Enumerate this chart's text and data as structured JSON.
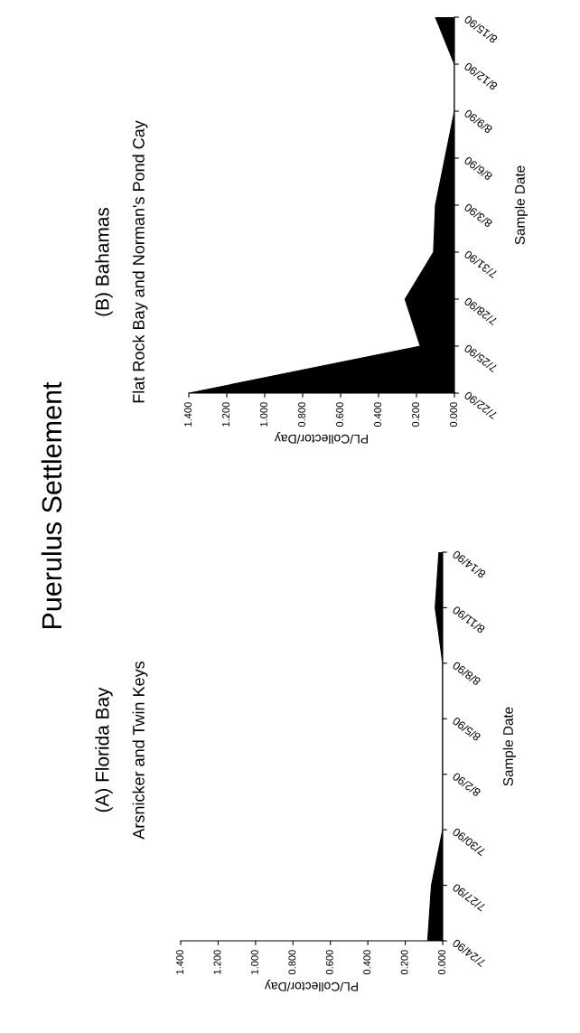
{
  "chart_data": [
    {
      "type": "area",
      "orientation": "horizontal",
      "title": "(A) Florida Bay",
      "subtitle": "Arsnicker and Twin Keys",
      "annotations": [
        "Puerulus Settlement"
      ],
      "xlabel": "PL/Collector/Day",
      "ylabel": "Sample Date",
      "categories": [
        "8/14/90",
        "8/11/90",
        "8/8/90",
        "8/5/90",
        "8/2/90",
        "7/30/90",
        "7/27/90",
        "7/24/90"
      ],
      "series": [
        {
          "color": "#000000",
          "values": [
            0.02,
            0.04,
            0.0,
            0.0,
            0.0,
            0.0,
            0.06,
            0.08
          ]
        }
      ],
      "xlim": [
        1.4,
        0
      ],
      "xticks": [
        {
          "value": 0,
          "label": "0.000"
        },
        {
          "value": 0.2,
          "label": "0.200"
        },
        {
          "value": 0.4,
          "label": "0.400"
        },
        {
          "value": 0.6,
          "label": "0.600"
        },
        {
          "value": 0.8,
          "label": "0.800"
        },
        {
          "value": 1.0,
          "label": "1.000"
        },
        {
          "value": 1.2,
          "label": "1.200"
        },
        {
          "value": 1.4,
          "label": "1.400"
        }
      ]
    },
    {
      "type": "area",
      "orientation": "horizontal",
      "title": "(B) Bahamas",
      "subtitle": "Flat Rock Bay and Norman's Pond Cay",
      "xlabel": "PL/Collector/Day",
      "ylabel": "Sample Date",
      "categories": [
        "8/15/90",
        "8/12/90",
        "8/9/90",
        "8/6/90",
        "8/3/90",
        "7/31/90",
        "7/28/90",
        "7/25/90",
        "7/22/90"
      ],
      "series": [
        {
          "color": "#000000",
          "values": [
            0.1,
            0.0,
            0.0,
            0.05,
            0.1,
            0.11,
            0.26,
            0.18,
            1.4
          ]
        }
      ],
      "xlim": [
        1.4,
        0
      ],
      "xticks": [
        {
          "value": 0,
          "label": "0.000"
        },
        {
          "value": 0.2,
          "label": "0.200"
        },
        {
          "value": 0.4,
          "label": "0.400"
        },
        {
          "value": 0.6,
          "label": "0.600"
        },
        {
          "value": 0.8,
          "label": "0.800"
        },
        {
          "value": 1.0,
          "label": "1.000"
        },
        {
          "value": 1.2,
          "label": "1.200"
        },
        {
          "value": 1.4,
          "label": "1.400"
        }
      ]
    }
  ]
}
